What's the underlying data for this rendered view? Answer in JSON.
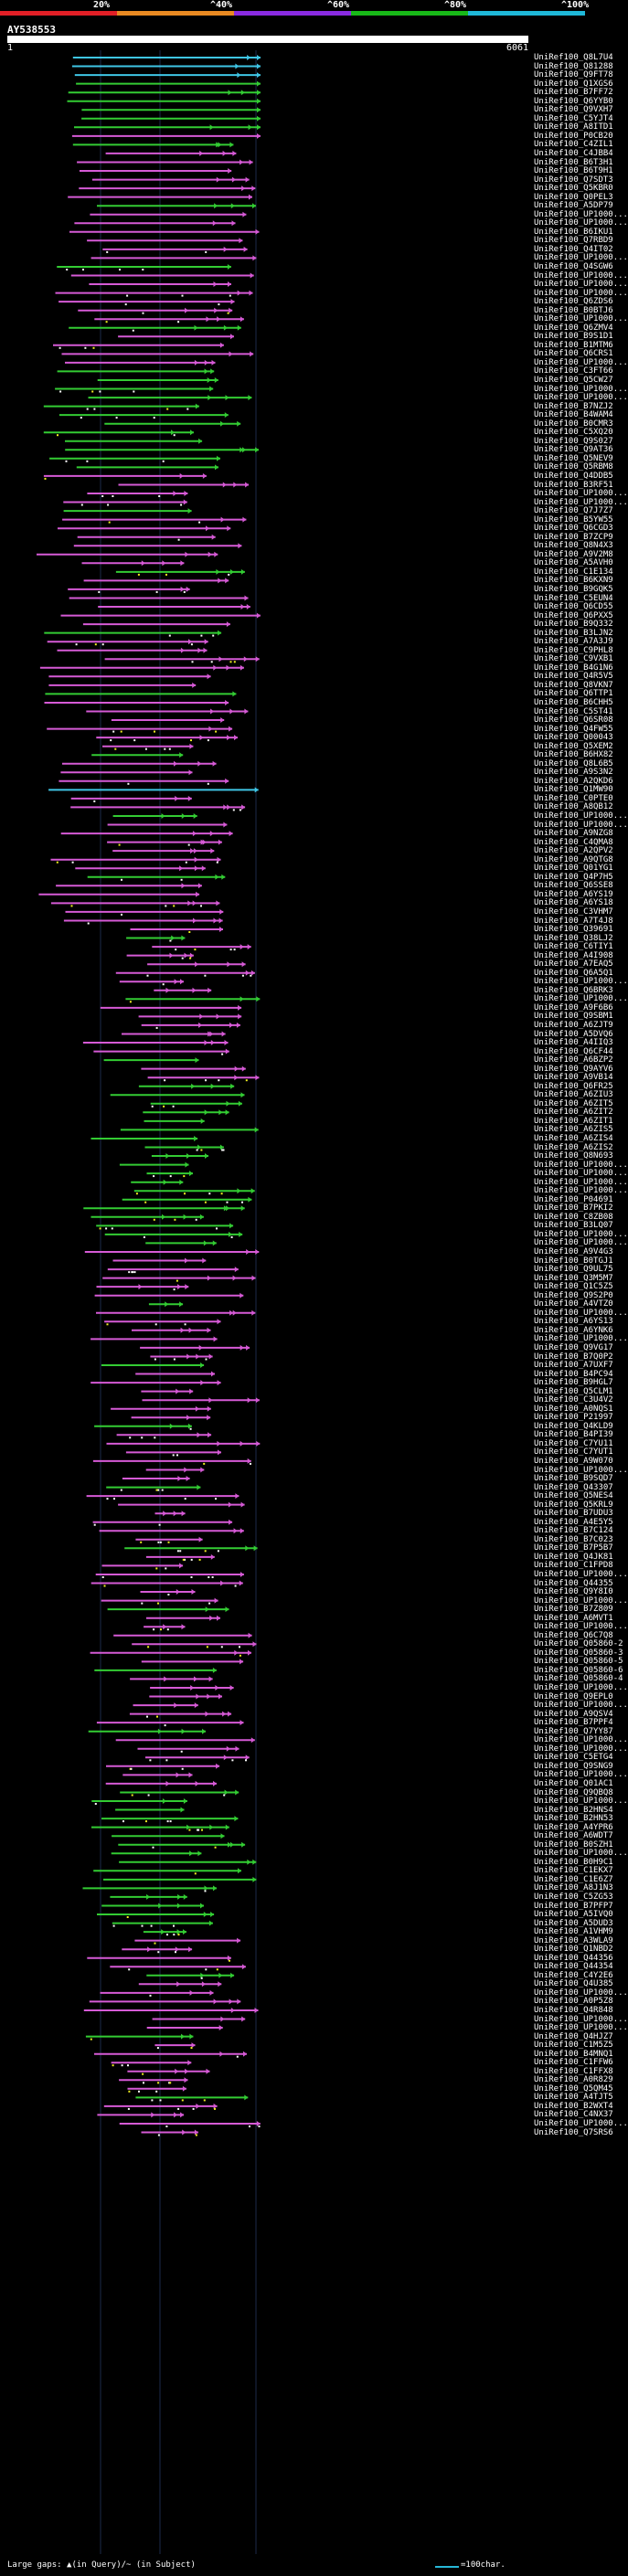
{
  "header": {
    "legend": [
      {
        "label": "20%",
        "color": "#e21f26"
      },
      {
        "label": "^40%",
        "color": "#e98a22"
      },
      {
        "label": "^60%",
        "color": "#8a2be2"
      },
      {
        "label": "^80%",
        "color": "#18b918"
      },
      {
        "label": "^100%",
        "color": "#1fb8d8"
      }
    ],
    "query_name": "AY538553",
    "scale_start": "1",
    "scale_end": "6061"
  },
  "colors": {
    "magenta": "#d65ad6",
    "green": "#33cc33",
    "cyan": "#3fc6e6",
    "orange": "#e98a22",
    "yellow": "#f0f020"
  },
  "hits": [
    "UniRef100_Q8L7U4",
    "UniRef100_Q81288",
    "UniRef100_Q9FT78",
    "UniRef100_Q1XGS6",
    "UniRef100_B7FF72",
    "UniRef100_Q6YYB0",
    "UniRef100_Q9VXH7",
    "UniRef100_C5YJT4",
    "UniRef100_A8ITD1",
    "UniRef100_P0CB20",
    "UniRef100_C4ZIL1",
    "UniRef100_C4JBB4",
    "UniRef100_B6T3H1",
    "UniRef100_B6T9H1",
    "UniRef100_Q7SDT3",
    "UniRef100_Q5KBR0",
    "UniRef100_Q0PEL3",
    "UniRef100_A5DP79",
    "UniRef100_UP1000...",
    "UniRef100_UP1000...",
    "UniRef100_B6IKU1",
    "UniRef100_Q7RBD9",
    "UniRef100_Q4IT02",
    "UniRef100_UP1000...",
    "UniRef100_Q4SGW6",
    "UniRef100_UP1000...",
    "UniRef100_UP1000...",
    "UniRef100_UP1000...",
    "UniRef100_Q6ZDS6",
    "UniRef100_B0BTJ6",
    "UniRef100_UP1000...",
    "UniRef100_Q6ZMV4",
    "UniRef100_B9S1D1",
    "UniRef100_B1MTM6",
    "UniRef100_Q6CRS1",
    "UniRef100_UP1000...",
    "UniRef100_C3FT66",
    "UniRef100_Q5CW27",
    "UniRef100_UP1000...",
    "UniRef100_UP1000...",
    "UniRef100_B7NZJ2",
    "UniRef100_B4WAM4",
    "UniRef100_B0CMR3",
    "UniRef100_C5XQ20",
    "UniRef100_Q9S027",
    "UniRef100_Q9AT36",
    "UniRef100_Q5NEV9",
    "UniRef100_Q5RBM8",
    "UniRef100_Q4DDB5",
    "UniRef100_B3RF51",
    "UniRef100_UP1000...",
    "UniRef100_UP1000...",
    "UniRef100_Q7J7Z7",
    "UniRef100_B5YW55",
    "UniRef100_Q6CGD3",
    "UniRef100_B7ZCP9",
    "UniRef100_Q8N4X3",
    "UniRef100_A9V2M8",
    "UniRef100_A5AVH0",
    "UniRef100_C1E134",
    "UniRef100_B6KXN9",
    "UniRef100_B9GQK5",
    "UniRef100_C5EUN4",
    "UniRef100_Q6CD55",
    "UniRef100_Q6PXX5",
    "UniRef100_B9Q332",
    "UniRef100_B3LJN2",
    "UniRef100_A7A3J9",
    "UniRef100_C9PHL8",
    "UniRef100_C9VXB1",
    "UniRef100_B4G1N6",
    "UniRef100_Q4R5V5",
    "UniRef100_Q8VKN7",
    "UniRef100_Q6TTP1",
    "UniRef100_B6CHH5",
    "UniRef100_C5ST41",
    "UniRef100_Q6SR08",
    "UniRef100_Q4FW55",
    "UniRef100_Q00043",
    "UniRef100_Q5XEM2",
    "UniRef100_B6HX82",
    "UniRef100_Q8L6B5",
    "UniRef100_A9S3N2",
    "UniRef100_A2QKD6",
    "UniRef100_Q1MW90",
    "UniRef100_C0PTE0",
    "UniRef100_A8QB12",
    "UniRef100_UP1000...",
    "UniRef100_UP1000...",
    "UniRef100_A9NZG8",
    "UniRef100_C4QMA8",
    "UniRef100_A2QPV2",
    "UniRef100_A9QTG8",
    "UniRef100_Q01YG1",
    "UniRef100_Q4P7H5",
    "UniRef100_Q6SSE8",
    "UniRef100_A6YS19",
    "UniRef100_A6YS18",
    "UniRef100_C3VHM7",
    "UniRef100_A7T4J8",
    "UniRef100_Q39691",
    "UniRef100_Q38LJ2",
    "UniRef100_C6TIY1",
    "UniRef100_A4I908",
    "UniRef100_A7EAQ5",
    "UniRef100_Q6A5Q1",
    "UniRef100_UP1000...",
    "UniRef100_Q6BRK3",
    "UniRef100_UP1000...",
    "UniRef100_A9F6B6",
    "UniRef100_Q9SBM1",
    "UniRef100_A6ZJT9",
    "UniRef100_A5DVQ6",
    "UniRef100_A4IIQ3",
    "UniRef100_Q6CF44",
    "UniRef100_A6BZP2",
    "UniRef100_Q9AYV6",
    "UniRef100_A9VB14",
    "UniRef100_Q6FR25",
    "UniRef100_A6ZIU3",
    "UniRef100_A6ZIT5",
    "UniRef100_A6ZIT2",
    "UniRef100_A6ZIT1",
    "UniRef100_A6ZIS5",
    "UniRef100_A6ZIS4",
    "UniRef100_A6ZIS2",
    "UniRef100_Q8N693",
    "UniRef100_UP1000...",
    "UniRef100_UP1000...",
    "UniRef100_UP1000...",
    "UniRef100_UP1000...",
    "UniRef100_P04691",
    "UniRef100_B7PKI2",
    "UniRef100_C8ZB08",
    "UniRef100_B3LQ07",
    "UniRef100_UP1000...",
    "UniRef100_UP1000...",
    "UniRef100_A9V4G3",
    "UniRef100_B0TGJ1",
    "UniRef100_Q9UL75",
    "UniRef100_Q3M5M7",
    "UniRef100_Q1C5Z5",
    "UniRef100_Q9S2P0",
    "UniRef100_A4VTZ0",
    "UniRef100_UP1000...",
    "UniRef100_A6YS13",
    "UniRef100_A6YNK6",
    "UniRef100_UP1000...",
    "UniRef100_Q9VG17",
    "UniRef100_B7Q0P2",
    "UniRef100_A7UXF7",
    "UniRef100_B4PC94",
    "UniRef100_B9HGL7",
    "UniRef100_Q5CLM1",
    "UniRef100_C3U4V2",
    "UniRef100_A0NQS1",
    "UniRef100_P21997",
    "UniRef100_Q4KLD9",
    "UniRef100_B4PI39",
    "UniRef100_C7YU11",
    "UniRef100_C7YUT1",
    "UniRef100_A9W070",
    "UniRef100_UP1000...",
    "UniRef100_B9SQD7",
    "UniRef100_Q43307",
    "UniRef100_Q5NES4",
    "UniRef100_Q5KRL9",
    "UniRef100_B7UDU3",
    "UniRef100_A4E5Y5",
    "UniRef100_B7C124",
    "UniRef100_B7C023",
    "UniRef100_B7P5B7",
    "UniRef100_Q4JK81",
    "UniRef100_C1FPD8",
    "UniRef100_UP1000...",
    "UniRef100_Q44355",
    "UniRef100_Q9Y8I0",
    "UniRef100_UP1000...",
    "UniRef100_B7Z809",
    "UniRef100_A6MVT1",
    "UniRef100_UP1000...",
    "UniRef100_Q6C7Q8",
    "UniRef100_Q05860-2",
    "UniRef100_Q05860-3",
    "UniRef100_Q05860-5",
    "UniRef100_Q05860-6",
    "UniRef100_Q05860-4",
    "UniRef100_UP1000...",
    "UniRef100_Q9EPL0",
    "UniRef100_UP1000...",
    "UniRef100_A9QSV4",
    "UniRef100_B7PPF4",
    "UniRef100_Q7YY87",
    "UniRef100_UP1000...",
    "UniRef100_UP1000...",
    "UniRef100_C5ETG4",
    "UniRef100_Q9SNG9",
    "UniRef100_UP1000...",
    "UniRef100_Q01AC1",
    "UniRef100_Q9QBQ8",
    "UniRef100_UP1000...",
    "UniRef100_B2HNS4",
    "UniRef100_B2HN53",
    "UniRef100_A4YPR6",
    "UniRef100_A6WDT7",
    "UniRef100_B0SZH1",
    "UniRef100_UP1000...",
    "UniRef100_B0H9C1",
    "UniRef100_C1EKX7",
    "UniRef100_C1E6Z7",
    "UniRef100_A8J1N3",
    "UniRef100_C5ZG53",
    "UniRef100_B7PFP7",
    "UniRef100_A5IVQ0",
    "UniRef100_A5DUD3",
    "UniRef100_A1VHM9",
    "UniRef100_A3WLA9",
    "UniRef100_Q1NBD2",
    "UniRef100_Q44356",
    "UniRef100_Q44354",
    "UniRef100_C4Y2E6",
    "UniRef100_Q4U385",
    "UniRef100_UP1000...",
    "UniRef100_A0P5Z8",
    "UniRef100_Q4R848",
    "UniRef100_UP1000...",
    "UniRef100_UP1000...",
    "UniRef100_Q4HJZ7",
    "UniRef100_C1M5Z5",
    "UniRef100_B4MNQ1",
    "UniRef100_C1FFW6",
    "UniRef100_C1FFX8",
    "UniRef100_A0R829",
    "UniRef100_Q5QM45",
    "UniRef100_A4TJT5",
    "UniRef100_B2WXT4",
    "UniRef100_C4NX37",
    "UniRef100_UP1000...",
    "UniRef100_Q7SRS6"
  ],
  "footer": {
    "gap_text": "Large gaps: ▲(in Query)/~ (in Subject)",
    "scale_text": "=100char."
  }
}
